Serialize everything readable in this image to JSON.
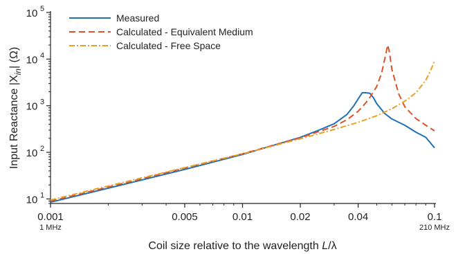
{
  "chart_data": {
    "type": "line",
    "x_scale": "log",
    "y_scale": "log",
    "xlim": [
      0.001,
      0.1
    ],
    "ylim": [
      8,
      100000
    ],
    "x_ticks": [
      {
        "value": 0.001,
        "label": "0.001",
        "sublabel": "1 MHz"
      },
      {
        "value": 0.005,
        "label": "0.005",
        "sublabel": ""
      },
      {
        "value": 0.01,
        "label": "0.01",
        "sublabel": ""
      },
      {
        "value": 0.02,
        "label": "0.02",
        "sublabel": ""
      },
      {
        "value": 0.04,
        "label": "0.04",
        "sublabel": ""
      },
      {
        "value": 0.1,
        "label": "0.1",
        "sublabel": "210 MHz"
      }
    ],
    "y_ticks": [
      {
        "value": 10,
        "base": "10",
        "exp": "1"
      },
      {
        "value": 100,
        "base": "10",
        "exp": "2"
      },
      {
        "value": 1000,
        "base": "10",
        "exp": "3"
      },
      {
        "value": 10000,
        "base": "10",
        "exp": "4"
      },
      {
        "value": 100000,
        "base": "10",
        "exp": "5"
      }
    ],
    "xlabel": {
      "main": "Coil size relative to the wavelength ",
      "italic": "L",
      "suffix": "/λ"
    },
    "ylabel": {
      "main": "Input Reactance |X",
      "sub": "in",
      "suffix": "| (Ω)"
    },
    "legend_position": "top-left",
    "series": [
      {
        "name": "Measured",
        "color": "#1f6fb4",
        "dash": "solid",
        "x": [
          0.001,
          0.002,
          0.005,
          0.01,
          0.02,
          0.025,
          0.03,
          0.035,
          0.038,
          0.04,
          0.042,
          0.044,
          0.046,
          0.048,
          0.05,
          0.055,
          0.06,
          0.07,
          0.08,
          0.09,
          0.1
        ],
        "y": [
          8.5,
          17,
          43,
          90,
          210,
          300,
          410,
          650,
          1000,
          1400,
          1900,
          1900,
          1850,
          1500,
          1100,
          680,
          520,
          380,
          270,
          210,
          125
        ]
      },
      {
        "name": "Calculated - Equivalent Medium",
        "color": "#d9532c",
        "dash": "dashed",
        "x": [
          0.001,
          0.002,
          0.005,
          0.01,
          0.02,
          0.03,
          0.035,
          0.04,
          0.045,
          0.05,
          0.053,
          0.055,
          0.057,
          0.058,
          0.06,
          0.065,
          0.07,
          0.08,
          0.09,
          0.1
        ],
        "y": [
          9,
          18,
          46,
          93,
          205,
          360,
          500,
          760,
          1300,
          2600,
          5000,
          10000,
          20000,
          15000,
          6000,
          1800,
          950,
          530,
          380,
          290
        ]
      },
      {
        "name": "Calculated - Free Space",
        "color": "#e8a020",
        "dash": "dashdot",
        "x": [
          0.001,
          0.002,
          0.005,
          0.01,
          0.02,
          0.03,
          0.04,
          0.05,
          0.06,
          0.07,
          0.08,
          0.09,
          0.095,
          0.1
        ],
        "y": [
          9.5,
          19,
          47,
          93,
          195,
          310,
          440,
          610,
          860,
          1250,
          1900,
          3500,
          5500,
          9000
        ]
      }
    ]
  }
}
